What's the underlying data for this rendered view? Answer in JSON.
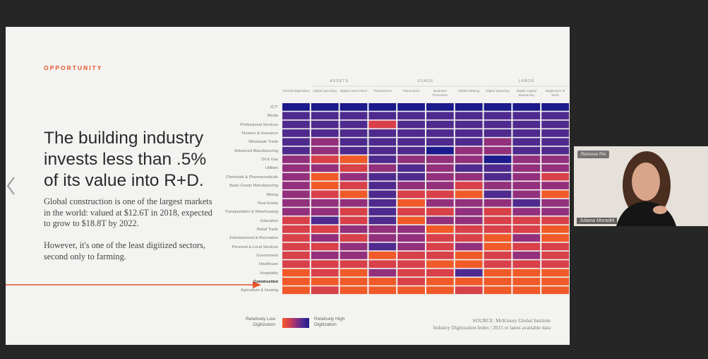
{
  "slide": {
    "kicker": "OPPORTUNITY",
    "headline": "The building industry invests less than .5% of its value into R+D.",
    "paragraphs": [
      "Global construction is one of the largest markets in the world: valued at $12.6T in 2018, expected to grow to $18.8T by 2022.",
      "However, it's one of the least digitized sectors, second only to farming."
    ],
    "source": [
      "SOURCE: McKinsey Global Institute",
      "Industry Digitization Index | 2015 or latest available data"
    ]
  },
  "chart_data": {
    "type": "heatmap",
    "groups": [
      "ASSETS",
      "USAGE",
      "LABOR"
    ],
    "categories": [
      "Overall Digitization",
      "Digital Spending",
      "Digital Asset Stock",
      "Transactions",
      "Interactions",
      "Business Processes",
      "Market Making",
      "Digital Spending",
      "Digital Capital Deepening",
      "Digitization of Work"
    ],
    "rows": [
      "ICT¹",
      "Media",
      "Professional Services",
      "Finance & Insurance",
      "Wholesale Trade",
      "Advanced Manufacturing",
      "Oil & Gas",
      "Utilities",
      "Chemicals & Pharmaceuticals",
      "Basic Goods Manufacturing",
      "Mining",
      "Real Estate",
      "Transportation & Warehousing",
      "Education",
      "Retail Trade",
      "Entertainment & Recreation",
      "Personal & Local Services",
      "Government",
      "Healthcare",
      "Hospitality",
      "Construction",
      "Agriculture & Hunting"
    ],
    "values": [
      [
        5,
        5,
        5,
        5,
        5,
        5,
        5,
        5,
        5,
        5
      ],
      [
        4,
        4,
        4,
        4,
        4,
        4,
        4,
        4,
        4,
        4
      ],
      [
        4,
        4,
        4,
        2,
        4,
        4,
        4,
        4,
        4,
        4
      ],
      [
        4,
        4,
        4,
        4,
        4,
        4,
        4,
        4,
        4,
        4
      ],
      [
        4,
        3,
        4,
        4,
        4,
        4,
        4,
        3,
        4,
        4
      ],
      [
        4,
        3,
        4,
        4,
        4,
        5,
        3,
        3,
        4,
        4
      ],
      [
        3,
        2,
        1,
        4,
        3,
        3,
        3,
        5,
        3,
        3
      ],
      [
        3,
        3,
        2,
        3,
        4,
        3,
        4,
        4,
        3,
        3
      ],
      [
        3,
        1,
        3,
        4,
        4,
        3,
        3,
        4,
        3,
        2
      ],
      [
        3,
        1,
        2,
        4,
        3,
        3,
        2,
        3,
        3,
        3
      ],
      [
        3,
        2,
        1,
        4,
        2,
        2,
        1,
        4,
        3,
        1
      ],
      [
        3,
        3,
        3,
        4,
        1,
        3,
        3,
        3,
        4,
        3
      ],
      [
        3,
        3,
        2,
        4,
        2,
        2,
        3,
        2,
        3,
        3
      ],
      [
        2,
        4,
        2,
        4,
        1,
        3,
        3,
        2,
        2,
        2
      ],
      [
        2,
        2,
        3,
        3,
        3,
        1,
        2,
        2,
        2,
        1
      ],
      [
        2,
        3,
        2,
        3,
        3,
        2,
        2,
        1,
        3,
        1
      ],
      [
        2,
        2,
        3,
        4,
        3,
        2,
        3,
        1,
        2,
        2
      ],
      [
        2,
        3,
        3,
        1,
        2,
        2,
        1,
        2,
        3,
        2
      ],
      [
        2,
        2,
        2,
        2,
        2,
        1,
        1,
        2,
        2,
        2
      ],
      [
        1,
        2,
        1,
        3,
        2,
        2,
        4,
        1,
        1,
        1
      ],
      [
        1,
        1,
        1,
        1,
        2,
        1,
        1,
        1,
        1,
        1
      ],
      [
        1,
        2,
        1,
        1,
        1,
        1,
        2,
        1,
        1,
        1
      ]
    ],
    "zlim": [
      1,
      5
    ],
    "colors": [
      "#f05a28",
      "#d8404a",
      "#93307c",
      "#4f2a8e",
      "#1c1a8c"
    ],
    "legend": {
      "low": "Relatively Low Digitization",
      "high": "Relatively High Digitization"
    }
  },
  "video": {
    "pin_button": "Remove Pin",
    "participant": "Juliana Moradel"
  }
}
